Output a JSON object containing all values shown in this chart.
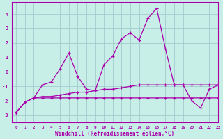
{
  "xlabel": "Windchill (Refroidissement éolien,°C)",
  "background_color": "#c8eee8",
  "grid_color": "#a0cccc",
  "line_color": "#aa00aa",
  "xlim": [
    -0.5,
    23
  ],
  "ylim": [
    -3.5,
    4.8
  ],
  "yticks": [
    -3,
    -2,
    -1,
    0,
    1,
    2,
    3,
    4
  ],
  "xticks": [
    0,
    1,
    2,
    3,
    4,
    5,
    6,
    7,
    8,
    9,
    10,
    11,
    12,
    13,
    14,
    15,
    16,
    17,
    18,
    19,
    20,
    21,
    22,
    23
  ],
  "series1_x": [
    0,
    1,
    2,
    3,
    4,
    5,
    6,
    7,
    8,
    9,
    10,
    11,
    12,
    13,
    14,
    15,
    16,
    17,
    18,
    19,
    20,
    21,
    22,
    23
  ],
  "series1_y": [
    -2.8,
    -2.1,
    -1.8,
    -1.8,
    -1.8,
    -1.8,
    -1.8,
    -1.8,
    -1.8,
    -1.8,
    -1.8,
    -1.8,
    -1.8,
    -1.8,
    -1.8,
    -1.8,
    -1.8,
    -1.8,
    -1.8,
    -1.8,
    -1.8,
    -1.8,
    -1.8,
    -1.8
  ],
  "series2_x": [
    0,
    1,
    2,
    3,
    4,
    5,
    6,
    7,
    8,
    9,
    10,
    11,
    12,
    13,
    14,
    15,
    16,
    17,
    18,
    19,
    20,
    21,
    22,
    23
  ],
  "series2_y": [
    -2.8,
    -2.1,
    -1.8,
    -0.9,
    -0.7,
    0.2,
    1.3,
    -0.3,
    -1.2,
    -1.3,
    0.5,
    1.1,
    2.3,
    2.7,
    2.2,
    3.7,
    4.4,
    1.6,
    -0.9,
    -0.9,
    -2.0,
    -2.5,
    -1.2,
    -0.9
  ],
  "series3_x": [
    0,
    1,
    2,
    3,
    4,
    5,
    6,
    7,
    8,
    9,
    10,
    11,
    12,
    13,
    14,
    15,
    16,
    17,
    18,
    19,
    20,
    21,
    22,
    23
  ],
  "series3_y": [
    -2.8,
    -2.1,
    -1.8,
    -1.7,
    -1.7,
    -1.6,
    -1.5,
    -1.4,
    -1.4,
    -1.3,
    -1.2,
    -1.2,
    -1.1,
    -1.0,
    -0.9,
    -0.9,
    -0.9,
    -0.9,
    -0.9,
    -0.9,
    -0.9,
    -0.9,
    -0.9,
    -0.9
  ]
}
